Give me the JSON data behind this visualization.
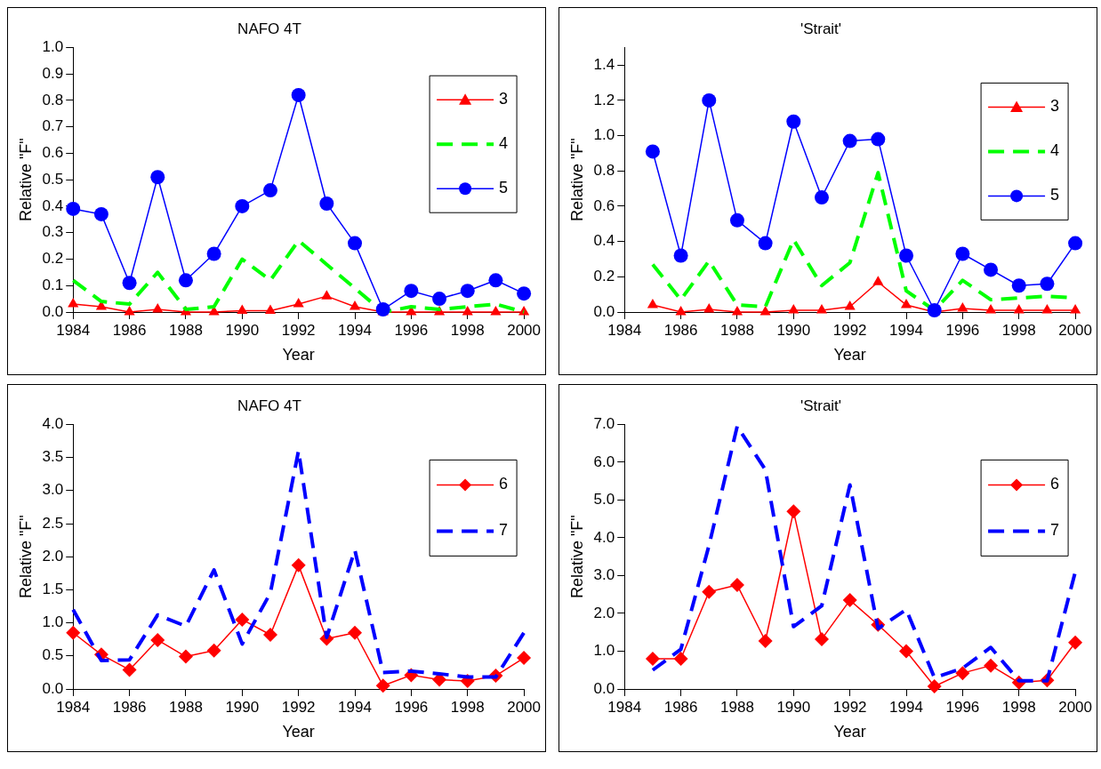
{
  "chart_data": [
    {
      "type": "line",
      "title": "NAFO 4T",
      "xlabel": "Year",
      "ylabel": "Relative \"F\"",
      "legend": "right",
      "grid": false,
      "x": [
        1984,
        1985,
        1986,
        1987,
        1988,
        1989,
        1990,
        1991,
        1992,
        1993,
        1994,
        1995,
        1996,
        1997,
        1998,
        1999,
        2000
      ],
      "xlim": [
        1984,
        2000
      ],
      "xticks": [
        1984,
        1986,
        1988,
        1990,
        1992,
        1994,
        1996,
        1998,
        2000
      ],
      "ylim": [
        0,
        1
      ],
      "yticks": [
        {
          "value": 0,
          "label": "0.0"
        },
        {
          "value": 0.1,
          "label": "0.1"
        },
        {
          "value": 0.2,
          "label": "0.2"
        },
        {
          "value": 0.3,
          "label": "0.3"
        },
        {
          "value": 0.4,
          "label": "0.4"
        },
        {
          "value": 0.5,
          "label": "0.5"
        },
        {
          "value": 0.6,
          "label": "0.6"
        },
        {
          "value": 0.7,
          "label": "0.7"
        },
        {
          "value": 0.8,
          "label": "0.8"
        },
        {
          "value": 0.9,
          "label": "0.9"
        },
        {
          "value": 1,
          "label": "1.0"
        }
      ],
      "series": [
        {
          "name": "3",
          "color": "#ff0000",
          "marker": "triangle",
          "line_style": "solid",
          "values": [
            0.03,
            0.02,
            0,
            0.01,
            0,
            0,
            0.005,
            0.005,
            0.03,
            0.06,
            0.02,
            0,
            0,
            0,
            0,
            0,
            0
          ]
        },
        {
          "name": "4",
          "color": "#00ff00",
          "marker": "none",
          "line_style": "dashed",
          "values": [
            0.12,
            0.04,
            0.03,
            0.15,
            0.01,
            0.02,
            0.2,
            0.12,
            0.27,
            0.18,
            0.09,
            0,
            0.02,
            0.01,
            0.02,
            0.03,
            0
          ]
        },
        {
          "name": "5",
          "color": "#0000ff",
          "marker": "circle",
          "line_style": "solid",
          "values": [
            0.39,
            0.37,
            0.11,
            0.51,
            0.12,
            0.22,
            0.4,
            0.46,
            0.82,
            0.41,
            0.26,
            0.01,
            0.08,
            0.05,
            0.08,
            0.12,
            0.07
          ]
        }
      ]
    },
    {
      "type": "line",
      "title": "'Strait'",
      "xlabel": "Year",
      "ylabel": "Relative \"F\"",
      "legend": "top right",
      "grid": false,
      "x": [
        1985,
        1986,
        1987,
        1988,
        1989,
        1990,
        1991,
        1992,
        1993,
        1994,
        1995,
        1996,
        1997,
        1998,
        1999,
        2000
      ],
      "xlim": [
        1984,
        2000
      ],
      "xticks": [
        1984,
        1986,
        1988,
        1990,
        1992,
        1994,
        1996,
        1998,
        2000
      ],
      "ylim": [
        0,
        1.5
      ],
      "yticks": [
        {
          "value": 0,
          "label": "0.0"
        },
        {
          "value": 0.2,
          "label": "0.2"
        },
        {
          "value": 0.4,
          "label": "0.4"
        },
        {
          "value": 0.6,
          "label": "0.6"
        },
        {
          "value": 0.8,
          "label": "0.8"
        },
        {
          "value": 1,
          "label": "1.0"
        },
        {
          "value": 1.2,
          "label": "1.2"
        },
        {
          "value": 1.4,
          "label": "1.4"
        }
      ],
      "series": [
        {
          "name": "3",
          "color": "#ff0000",
          "marker": "triangle",
          "line_style": "solid",
          "values": [
            0.04,
            0,
            0.015,
            0,
            0,
            0.01,
            0.01,
            0.03,
            0.17,
            0.04,
            0,
            0.02,
            0.01,
            0.01,
            0.01,
            0.01
          ]
        },
        {
          "name": "4",
          "color": "#00ff00",
          "marker": "none",
          "line_style": "dashed",
          "values": [
            0.27,
            0.07,
            0.29,
            0.04,
            0.03,
            0.41,
            0.15,
            0.28,
            0.79,
            0.12,
            0.01,
            0.18,
            0.07,
            0.08,
            0.09,
            0.08
          ]
        },
        {
          "name": "5",
          "color": "#0000ff",
          "marker": "circle",
          "line_style": "solid",
          "values": [
            0.91,
            0.32,
            1.2,
            0.52,
            0.39,
            1.08,
            0.65,
            0.97,
            0.98,
            0.32,
            0.01,
            0.33,
            0.24,
            0.15,
            0.16,
            0.39
          ]
        }
      ]
    },
    {
      "type": "line",
      "title": "NAFO 4T",
      "xlabel": "Year",
      "ylabel": "Relative \"F\"",
      "legend": "top right",
      "grid": false,
      "x": [
        1984,
        1985,
        1986,
        1987,
        1988,
        1989,
        1990,
        1991,
        1992,
        1993,
        1994,
        1995,
        1996,
        1997,
        1998,
        1999,
        2000
      ],
      "xlim": [
        1984,
        2000
      ],
      "xticks": [
        1984,
        1986,
        1988,
        1990,
        1992,
        1994,
        1996,
        1998,
        2000
      ],
      "ylim": [
        0,
        4
      ],
      "yticks": [
        {
          "value": 0,
          "label": "0.0"
        },
        {
          "value": 0.5,
          "label": "0.5"
        },
        {
          "value": 1,
          "label": "1.0"
        },
        {
          "value": 1.5,
          "label": "1.5"
        },
        {
          "value": 2,
          "label": "2.0"
        },
        {
          "value": 2.5,
          "label": "2.5"
        },
        {
          "value": 3,
          "label": "3.0"
        },
        {
          "value": 3.5,
          "label": "3.5"
        },
        {
          "value": 4,
          "label": "4.0"
        }
      ],
      "series": [
        {
          "name": "6",
          "color": "#ff0000",
          "marker": "diamond",
          "line_style": "solid",
          "values": [
            0.85,
            0.52,
            0.29,
            0.74,
            0.49,
            0.58,
            1.05,
            0.82,
            1.87,
            0.76,
            0.85,
            0.05,
            0.21,
            0.14,
            0.12,
            0.2,
            0.47
          ]
        },
        {
          "name": "7",
          "color": "#0000ff",
          "marker": "none",
          "line_style": "dashed",
          "values": [
            1.2,
            0.43,
            0.44,
            1.12,
            0.95,
            1.8,
            0.68,
            1.45,
            3.6,
            0.78,
            2.1,
            0.25,
            0.27,
            0.23,
            0.18,
            0.18,
            0.85
          ]
        }
      ]
    },
    {
      "type": "line",
      "title": "'Strait'",
      "xlabel": "Year",
      "ylabel": "Relative \"F\"",
      "legend": "top right",
      "grid": false,
      "x": [
        1985,
        1986,
        1987,
        1988,
        1989,
        1990,
        1991,
        1992,
        1993,
        1994,
        1995,
        1996,
        1997,
        1998,
        1999,
        2000
      ],
      "xlim": [
        1984,
        2000
      ],
      "xticks": [
        1984,
        1986,
        1988,
        1990,
        1992,
        1994,
        1996,
        1998,
        2000
      ],
      "ylim": [
        0,
        7
      ],
      "yticks": [
        {
          "value": 0,
          "label": "0.0"
        },
        {
          "value": 1,
          "label": "1.0"
        },
        {
          "value": 2,
          "label": "2.0"
        },
        {
          "value": 3,
          "label": "3.0"
        },
        {
          "value": 4,
          "label": "4.0"
        },
        {
          "value": 5,
          "label": "5.0"
        },
        {
          "value": 6,
          "label": "6.0"
        },
        {
          "value": 7,
          "label": "7.0"
        }
      ],
      "series": [
        {
          "name": "6",
          "color": "#ff0000",
          "marker": "diamond",
          "line_style": "solid",
          "values": [
            0.8,
            0.8,
            2.57,
            2.75,
            1.27,
            4.7,
            1.32,
            2.35,
            1.7,
            1.0,
            0.07,
            0.42,
            0.62,
            0.17,
            0.23,
            1.23
          ]
        },
        {
          "name": "7",
          "color": "#0000ff",
          "marker": "none",
          "line_style": "dashed",
          "values": [
            0.5,
            1.05,
            3.8,
            6.95,
            5.8,
            1.65,
            2.2,
            5.4,
            1.6,
            2.1,
            0.3,
            0.55,
            1.1,
            0.22,
            0.22,
            3.1
          ]
        }
      ]
    }
  ]
}
